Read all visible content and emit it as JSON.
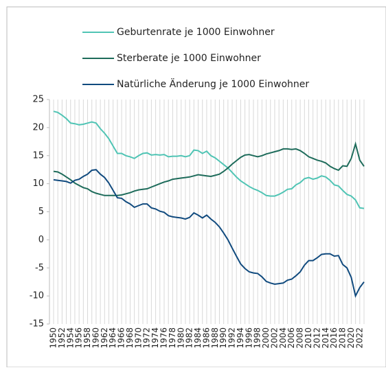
{
  "chart_data": {
    "type": "line",
    "categories": [
      "1950",
      null,
      "1952",
      null,
      "1954",
      null,
      "1956",
      null,
      "1958",
      null,
      "1960",
      null,
      "1962",
      null,
      "1964",
      null,
      "1966",
      null,
      "1968",
      null,
      "1970",
      null,
      "1972",
      null,
      "1974",
      null,
      "1976",
      null,
      "1978",
      null,
      "1980",
      null,
      "1982",
      null,
      "1984",
      null,
      "1986",
      null,
      "1988",
      null,
      "1990",
      null,
      "1992",
      null,
      "1994",
      null,
      "1996",
      null,
      "1998",
      null,
      "2000",
      null,
      "2002",
      null,
      "2004",
      null,
      "2006",
      null,
      "2008",
      null,
      "2010",
      null,
      "2012",
      null,
      "2014",
      null,
      "2016",
      null,
      "2018",
      null,
      "2020",
      null,
      "2022",
      null
    ],
    "series": [
      {
        "name": "Geburtenrate je 1000 Einwohner",
        "color": "#4fc4b4",
        "values": [
          22.9,
          22.7,
          22.2,
          21.6,
          20.8,
          20.7,
          20.5,
          20.6,
          20.8,
          21.0,
          20.8,
          19.8,
          19.0,
          18.0,
          16.7,
          15.4,
          15.4,
          15.0,
          14.8,
          14.5,
          15.0,
          15.4,
          15.5,
          15.1,
          15.2,
          15.1,
          15.2,
          14.8,
          14.9,
          14.9,
          15.0,
          14.8,
          15.0,
          16.0,
          15.9,
          15.4,
          15.8,
          15.0,
          14.6,
          14.0,
          13.4,
          12.8,
          12.0,
          11.2,
          10.5,
          10.0,
          9.5,
          9.1,
          8.8,
          8.4,
          7.9,
          7.8,
          7.8,
          8.1,
          8.5,
          9.0,
          9.1,
          9.8,
          10.2,
          10.9,
          11.1,
          10.8,
          11.0,
          11.4,
          11.2,
          10.6,
          9.8,
          9.6,
          8.8,
          8.1,
          7.8,
          7.1,
          5.7,
          5.6
        ]
      },
      {
        "name": "Sterberate je 1000 Einwohner",
        "color": "#1d6b5a",
        "values": [
          12.2,
          12.1,
          11.7,
          11.2,
          10.7,
          10.1,
          9.7,
          9.3,
          9.1,
          8.6,
          8.3,
          8.1,
          7.9,
          7.9,
          7.9,
          7.9,
          8.0,
          8.2,
          8.4,
          8.7,
          8.9,
          9.0,
          9.1,
          9.4,
          9.7,
          10.0,
          10.3,
          10.5,
          10.8,
          10.9,
          11.0,
          11.1,
          11.2,
          11.4,
          11.6,
          11.5,
          11.4,
          11.3,
          11.5,
          11.7,
          12.2,
          12.8,
          13.5,
          14.1,
          14.7,
          15.1,
          15.2,
          15.0,
          14.8,
          15.0,
          15.3,
          15.5,
          15.7,
          15.9,
          16.2,
          16.2,
          16.1,
          16.2,
          15.9,
          15.4,
          14.8,
          14.5,
          14.2,
          14.0,
          13.7,
          13.1,
          12.7,
          12.4,
          13.2,
          13.1,
          14.5,
          17.1,
          14.2,
          13.1
        ]
      },
      {
        "name": "Natürliche Änderung je 1000 Einwohner",
        "color": "#104a7e",
        "values": [
          10.7,
          10.6,
          10.5,
          10.4,
          10.1,
          10.6,
          10.8,
          11.3,
          11.7,
          12.4,
          12.5,
          11.7,
          11.1,
          10.1,
          8.8,
          7.5,
          7.4,
          6.8,
          6.4,
          5.8,
          6.1,
          6.4,
          6.4,
          5.7,
          5.5,
          5.1,
          4.9,
          4.3,
          4.1,
          4.0,
          3.9,
          3.7,
          4.0,
          4.8,
          4.4,
          3.9,
          4.4,
          3.7,
          3.1,
          2.3,
          1.2,
          0.0,
          -1.5,
          -2.9,
          -4.3,
          -5.1,
          -5.7,
          -5.9,
          -6.0,
          -6.6,
          -7.4,
          -7.7,
          -7.9,
          -7.8,
          -7.7,
          -7.2,
          -7.0,
          -6.4,
          -5.7,
          -4.5,
          -3.7,
          -3.7,
          -3.2,
          -2.6,
          -2.5,
          -2.5,
          -2.9,
          -2.8,
          -4.4,
          -5.0,
          -6.7,
          -10.0,
          -8.5,
          -7.5
        ]
      }
    ],
    "ylim": [
      -15,
      25
    ],
    "yticks": [
      -15,
      -10,
      -5,
      0,
      5,
      10,
      15,
      20,
      25
    ],
    "grid": true,
    "legend": "top"
  }
}
